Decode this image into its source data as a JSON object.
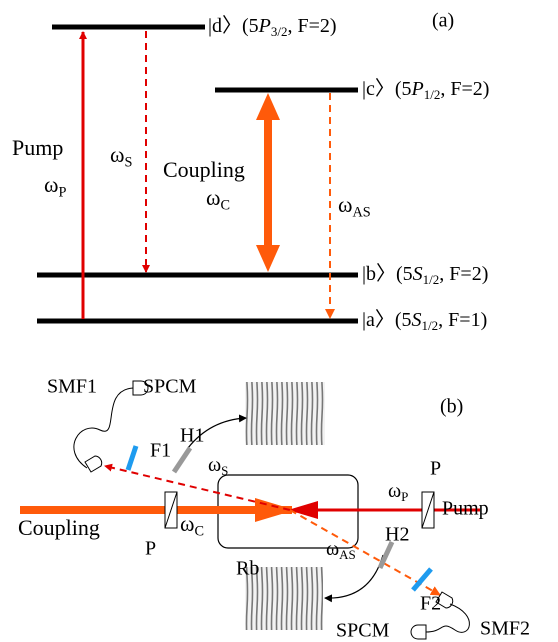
{
  "panel_a": {
    "label": "(a)",
    "levels": [
      {
        "state": "|d〉(5",
        "symbol": "P",
        "sub": "3/2",
        "rest": ", F=2)"
      },
      {
        "state": "|c〉(5",
        "symbol": "P",
        "sub": "1/2",
        "rest": ", F=2)"
      },
      {
        "state": "|b〉(5",
        "symbol": "S",
        "sub": "1/2",
        "rest": ", F=2)"
      },
      {
        "state": "|a〉(5",
        "symbol": "S",
        "sub": "1/2",
        "rest": ", F=1)"
      }
    ],
    "pump": "Pump",
    "pump_freq": {
      "symbol": "ω",
      "sub": "P"
    },
    "stokes_freq": {
      "symbol": "ω",
      "sub": "S"
    },
    "coupling": "Coupling",
    "coupling_freq": {
      "symbol": "ω",
      "sub": "C"
    },
    "antistokes_freq": {
      "symbol": "ω",
      "sub": "AS"
    }
  },
  "panel_b": {
    "label": "(b)",
    "smf1": "SMF1",
    "spcm1": "SPCM",
    "f1": "F1",
    "h1": "H1",
    "stokes_freq": {
      "symbol": "ω",
      "sub": "S"
    },
    "pump_polarizer": "P",
    "pump": "Pump",
    "pump_freq": {
      "symbol": "ω",
      "sub": "P"
    },
    "coupling": "Coupling",
    "coupling_freq": {
      "symbol": "ω",
      "sub": "C"
    },
    "coupling_polarizer": "P",
    "cell": "Rb",
    "antistokes_freq": {
      "symbol": "ω",
      "sub": "AS"
    },
    "h2": "H2",
    "f2": "F2",
    "spcm2": "SPCM",
    "smf2": "SMF2"
  }
}
